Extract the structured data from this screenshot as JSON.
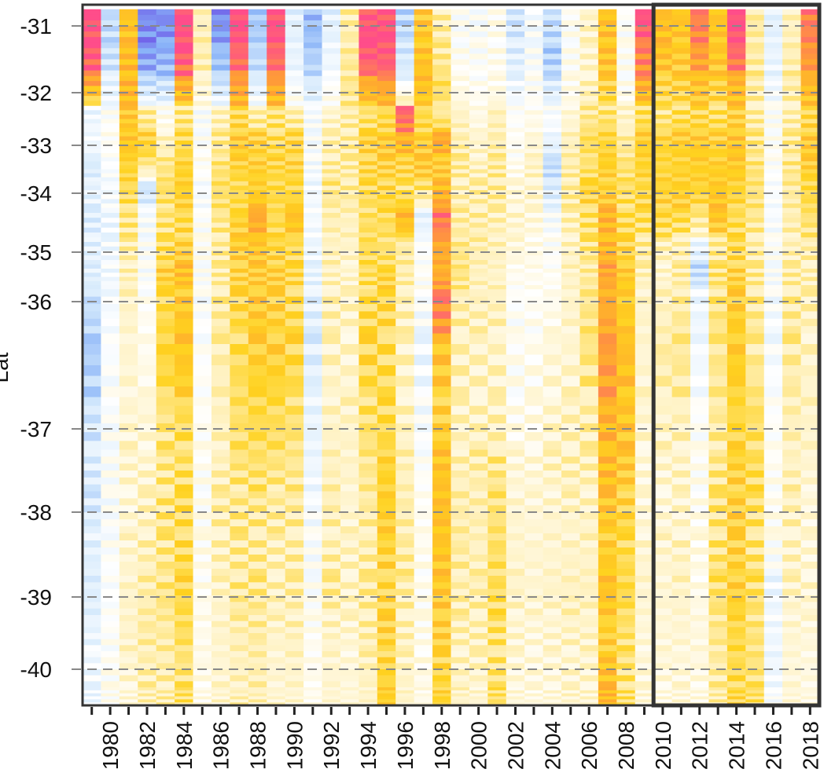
{
  "chart_data": {
    "type": "heatmap",
    "title": "",
    "xlabel": "",
    "ylabel": "Lat",
    "x_tick_labels": [
      "1980",
      "1982",
      "1984",
      "1986",
      "1988",
      "1990",
      "1992",
      "1994",
      "1996",
      "1998",
      "2000",
      "2002",
      "2004",
      "2006",
      "2008",
      "2010",
      "2012",
      "2014",
      "2016",
      "2018"
    ],
    "y_tick_labels": [
      "-31",
      "-32",
      "-33",
      "-34",
      "-35",
      "-36",
      "-37",
      "-38",
      "-39",
      "-40"
    ],
    "y_ticks": [
      -31,
      -32,
      -33,
      -34,
      -35,
      -36,
      -37,
      -38,
      -39,
      -40
    ],
    "years": [
      1979,
      1980,
      1981,
      1982,
      1983,
      1984,
      1985,
      1986,
      1987,
      1988,
      1989,
      1990,
      1991,
      1992,
      1993,
      1994,
      1995,
      1996,
      1997,
      1998,
      1999,
      2000,
      2001,
      2002,
      2003,
      2004,
      2005,
      2006,
      2007,
      2008,
      2009,
      2010,
      2011,
      2012,
      2013,
      2014,
      2015,
      2016,
      2017,
      2018
    ],
    "xlim": [
      1978.5,
      2018.5
    ],
    "ylim": [
      -30.7,
      -40.5
    ],
    "grid": "dashed horizontal lines at y ticks",
    "highlight_box": {
      "x_start": 2009.5,
      "x_end": 2018.5,
      "label": ""
    },
    "value_scale": [
      -3,
      3
    ],
    "colors": {
      "scale": [
        "#6a4ee6",
        "#8ab4f8",
        "#d6eafc",
        "#ffffff",
        "#fff2c2",
        "#ffd21f",
        "#ffa033",
        "#ff4d8a"
      ],
      "grid_line": "#888888",
      "frame": "#333333",
      "highlight_border": "#333333"
    },
    "lat_bands": [
      {
        "lat": -31.0,
        "values": [
          3.0,
          -1.5,
          1.5,
          -2.5,
          -2.5,
          3.0,
          0.4,
          -2.5,
          3.0,
          -1.8,
          3.0,
          -1.0,
          -2.0,
          -1.0,
          0.5,
          3.0,
          3.0,
          -1.6,
          1.4,
          0.5,
          -0.4,
          -0.5,
          -0.2,
          -1.3,
          -0.6,
          -1.4,
          -0.3,
          0.3,
          1.5,
          -0.4,
          3.0,
          1.6,
          1.5,
          2.5,
          1.5,
          3.0,
          0.6,
          -1.0,
          0.4,
          2.5
        ]
      },
      {
        "lat": -31.5,
        "values": [
          3.0,
          -1.4,
          1.6,
          -2.4,
          -2.2,
          3.0,
          0.5,
          -2.0,
          2.8,
          -1.6,
          2.8,
          -0.9,
          -1.8,
          -0.8,
          0.6,
          3.0,
          3.0,
          -1.3,
          1.5,
          0.6,
          -0.3,
          -0.4,
          -0.2,
          -1.1,
          -0.5,
          -1.8,
          -0.3,
          0.2,
          1.6,
          -0.3,
          2.5,
          1.6,
          1.4,
          2.2,
          1.5,
          2.8,
          0.6,
          -0.9,
          0.5,
          2.3
        ]
      },
      {
        "lat": -32.0,
        "values": [
          2.2,
          -1.0,
          1.8,
          -1.6,
          -1.4,
          2.0,
          0.3,
          -1.5,
          2.2,
          -1.2,
          2.2,
          -0.7,
          -1.2,
          -0.5,
          0.7,
          2.0,
          2.2,
          -0.9,
          1.6,
          1.0,
          -0.2,
          -0.3,
          -0.2,
          -0.8,
          -0.4,
          -1.2,
          -0.2,
          0.3,
          1.2,
          -0.3,
          2.0,
          1.2,
          1.2,
          1.6,
          1.2,
          1.8,
          0.5,
          -0.7,
          0.5,
          1.8
        ]
      },
      {
        "lat": -32.5,
        "values": [
          -0.8,
          -0.4,
          1.4,
          0.5,
          -0.3,
          0.7,
          -0.5,
          0.3,
          1.0,
          0.4,
          0.8,
          0.4,
          -0.6,
          0.2,
          0.5,
          0.8,
          1.0,
          2.8,
          1.0,
          0.5,
          0.3,
          -0.1,
          0.4,
          -0.4,
          -0.2,
          -0.5,
          0.1,
          0.6,
          0.8,
          0.2,
          0.9,
          0.7,
          0.9,
          1.0,
          0.9,
          1.2,
          0.5,
          -0.4,
          0.4,
          1.0
        ]
      },
      {
        "lat": -33.0,
        "values": [
          -0.6,
          -0.3,
          1.5,
          1.2,
          0.3,
          1.0,
          -0.4,
          0.6,
          1.4,
          1.2,
          1.0,
          1.1,
          -0.5,
          0.4,
          0.6,
          1.2,
          1.4,
          1.8,
          1.3,
          2.0,
          0.5,
          0.2,
          0.5,
          -0.3,
          0.1,
          -0.8,
          0.4,
          1.0,
          1.1,
          0.6,
          1.3,
          1.2,
          1.3,
          1.4,
          1.2,
          1.5,
          0.7,
          -0.3,
          0.6,
          1.4
        ]
      },
      {
        "lat": -33.5,
        "values": [
          -1.2,
          -0.5,
          1.2,
          0.9,
          0.7,
          1.2,
          -0.3,
          0.8,
          1.2,
          1.3,
          1.1,
          1.2,
          -0.6,
          0.5,
          0.5,
          1.1,
          1.2,
          1.2,
          1.4,
          1.3,
          0.6,
          0.3,
          0.6,
          -0.2,
          0.3,
          -1.5,
          0.5,
          0.8,
          1.3,
          0.8,
          1.2,
          1.1,
          1.2,
          1.3,
          1.3,
          1.4,
          0.8,
          -0.4,
          0.7,
          1.3
        ]
      },
      {
        "lat": -34.0,
        "values": [
          -0.9,
          -0.6,
          1.0,
          -1.4,
          0.9,
          1.3,
          -0.6,
          0.9,
          1.0,
          1.2,
          1.1,
          1.0,
          -0.7,
          0.7,
          0.6,
          1.0,
          1.1,
          0.8,
          1.0,
          1.6,
          0.4,
          0.5,
          0.6,
          0.1,
          0.2,
          -1.2,
          0.6,
          1.2,
          1.2,
          0.9,
          1.1,
          1.2,
          1.3,
          1.2,
          1.4,
          1.2,
          0.8,
          -0.5,
          0.6,
          1.1
        ]
      },
      {
        "lat": -34.5,
        "values": [
          -1.1,
          -0.8,
          0.8,
          -0.6,
          0.8,
          1.0,
          -0.4,
          0.7,
          1.2,
          2.0,
          1.0,
          1.6,
          -0.6,
          0.5,
          0.4,
          0.9,
          1.0,
          1.8,
          -1.0,
          2.6,
          0.5,
          0.5,
          0.4,
          0.2,
          0.1,
          -0.6,
          0.4,
          0.9,
          1.8,
          1.0,
          1.0,
          1.2,
          1.1,
          0.9,
          1.6,
          1.0,
          0.7,
          -0.6,
          0.5,
          0.9
        ]
      },
      {
        "lat": -35.0,
        "values": [
          -1.0,
          -0.7,
          0.5,
          -0.4,
          0.9,
          1.2,
          -0.3,
          0.6,
          1.3,
          1.5,
          1.1,
          1.0,
          -0.8,
          0.4,
          0.3,
          1.0,
          0.8,
          0.6,
          -0.5,
          2.0,
          0.7,
          0.5,
          0.4,
          0.1,
          -0.1,
          -0.4,
          0.3,
          0.8,
          1.7,
          1.1,
          0.6,
          0.4,
          0.4,
          -0.8,
          0.6,
          1.0,
          0.5,
          -0.4,
          0.4,
          0.5
        ]
      },
      {
        "lat": -35.5,
        "values": [
          -1.0,
          -0.7,
          0.4,
          -0.5,
          1.3,
          1.6,
          -0.4,
          0.5,
          1.2,
          1.3,
          1.3,
          1.1,
          -0.9,
          0.3,
          0.2,
          0.9,
          1.2,
          0.5,
          -0.3,
          1.8,
          0.8,
          0.4,
          0.3,
          -0.2,
          -0.2,
          -0.3,
          0.3,
          0.6,
          2.0,
          1.4,
          0.4,
          0.2,
          0.5,
          -1.5,
          0.8,
          1.2,
          0.6,
          -0.5,
          0.5,
          0.4
        ]
      },
      {
        "lat": -36.0,
        "values": [
          -1.4,
          -0.6,
          0.3,
          -0.3,
          1.0,
          1.4,
          -0.5,
          0.6,
          1.1,
          1.4,
          1.2,
          1.0,
          -1.0,
          0.4,
          0.3,
          1.0,
          1.1,
          0.4,
          -0.5,
          2.6,
          0.5,
          0.4,
          0.4,
          -0.4,
          -0.3,
          -0.2,
          0.3,
          0.7,
          1.9,
          1.3,
          0.3,
          0.3,
          0.6,
          -0.8,
          0.8,
          1.3,
          0.7,
          -0.6,
          0.6,
          0.4
        ]
      },
      {
        "lat": -36.5,
        "values": [
          -1.8,
          -0.5,
          0.2,
          -0.2,
          1.2,
          1.5,
          -0.4,
          0.5,
          1.0,
          1.3,
          1.3,
          1.1,
          -1.1,
          0.3,
          0.2,
          1.1,
          1.0,
          0.3,
          -0.8,
          1.5,
          0.4,
          0.3,
          0.3,
          -0.3,
          -0.2,
          0.1,
          0.2,
          0.8,
          2.2,
          1.6,
          0.2,
          0.6,
          0.7,
          -0.7,
          0.7,
          1.4,
          0.6,
          -0.6,
          0.6,
          0.3
        ]
      },
      {
        "lat": -37.0,
        "values": [
          -1.3,
          -0.5,
          0.2,
          0.1,
          0.8,
          1.0,
          -0.3,
          0.4,
          0.9,
          1.1,
          1.0,
          0.9,
          -0.9,
          0.3,
          0.3,
          0.9,
          1.0,
          0.3,
          -0.6,
          1.2,
          0.3,
          0.3,
          0.3,
          -0.2,
          -0.1,
          0.2,
          0.3,
          0.5,
          1.8,
          1.5,
          0.2,
          0.3,
          0.4,
          -0.4,
          0.6,
          1.1,
          0.9,
          -0.4,
          0.5,
          0.3
        ]
      },
      {
        "lat": -37.5,
        "values": [
          -1.1,
          -0.4,
          0.2,
          0.2,
          0.7,
          0.9,
          -0.3,
          0.4,
          0.8,
          0.9,
          0.8,
          0.7,
          -0.8,
          0.4,
          0.3,
          0.7,
          1.2,
          0.4,
          -0.4,
          1.5,
          0.4,
          0.5,
          0.7,
          0.1,
          0.1,
          0.3,
          0.4,
          0.4,
          1.7,
          1.4,
          0.1,
          0.2,
          0.3,
          -0.3,
          0.7,
          1.2,
          1.0,
          -0.3,
          0.4,
          0.2
        ]
      },
      {
        "lat": -38.0,
        "values": [
          -1.2,
          -0.5,
          0.1,
          0.3,
          0.8,
          1.0,
          -0.3,
          0.5,
          0.7,
          0.7,
          0.6,
          0.6,
          -0.6,
          0.5,
          0.2,
          0.6,
          1.3,
          0.5,
          -0.3,
          1.6,
          0.5,
          0.5,
          0.8,
          0.2,
          0.1,
          0.2,
          0.3,
          0.3,
          1.5,
          1.2,
          0.1,
          0.1,
          0.2,
          -0.2,
          0.8,
          1.3,
          0.9,
          -0.2,
          0.4,
          0.1
        ]
      },
      {
        "lat": -38.5,
        "values": [
          -1.0,
          -0.4,
          0.2,
          0.4,
          0.7,
          1.0,
          -0.2,
          0.4,
          0.6,
          0.6,
          0.4,
          0.5,
          -0.5,
          0.4,
          0.3,
          0.5,
          1.2,
          0.6,
          -0.2,
          1.5,
          0.6,
          0.4,
          0.9,
          0.2,
          0.2,
          0.2,
          0.3,
          0.3,
          1.3,
          1.0,
          0.2,
          0.2,
          0.3,
          -0.1,
          0.8,
          1.2,
          0.8,
          -0.3,
          0.3,
          0.1
        ]
      },
      {
        "lat": -39.0,
        "values": [
          -1.1,
          -0.5,
          0.3,
          0.5,
          0.8,
          1.1,
          -0.2,
          0.3,
          0.7,
          0.7,
          0.4,
          0.5,
          -0.4,
          0.6,
          0.3,
          0.6,
          1.1,
          0.5,
          -0.2,
          1.4,
          0.5,
          0.5,
          1.0,
          0.3,
          0.2,
          0.3,
          0.4,
          0.4,
          1.6,
          1.1,
          0.2,
          0.2,
          0.3,
          -0.1,
          0.9,
          1.3,
          0.9,
          -0.8,
          0.3,
          0.2
        ]
      },
      {
        "lat": -39.5,
        "values": [
          -0.9,
          -0.4,
          0.3,
          0.6,
          0.6,
          1.0,
          -0.2,
          0.3,
          0.5,
          0.6,
          0.3,
          0.4,
          -0.3,
          0.3,
          0.2,
          0.5,
          1.2,
          0.4,
          -0.2,
          1.3,
          0.4,
          0.4,
          0.9,
          0.2,
          0.1,
          0.2,
          0.3,
          0.3,
          1.2,
          0.9,
          0.1,
          0.1,
          0.2,
          0.0,
          0.7,
          1.1,
          0.8,
          -0.7,
          0.2,
          0.1
        ]
      },
      {
        "lat": -40.0,
        "values": [
          -0.7,
          -0.3,
          0.2,
          0.5,
          0.5,
          0.8,
          -0.1,
          0.2,
          0.4,
          0.5,
          0.2,
          0.3,
          -0.2,
          0.2,
          0.1,
          0.4,
          1.1,
          0.3,
          -0.1,
          1.1,
          0.3,
          0.3,
          0.8,
          0.1,
          0.1,
          0.1,
          0.2,
          0.2,
          1.5,
          0.8,
          0.1,
          0.1,
          0.1,
          0.0,
          0.6,
          1.0,
          0.8,
          -0.8,
          0.1,
          0.0
        ]
      },
      {
        "lat": -40.5,
        "values": [
          -0.8,
          -0.3,
          0.1,
          0.4,
          0.5,
          0.9,
          -0.1,
          0.2,
          0.4,
          0.4,
          0.2,
          0.2,
          -0.2,
          0.2,
          0.1,
          0.3,
          1.3,
          0.3,
          -0.1,
          1.2,
          0.3,
          0.2,
          0.9,
          0.1,
          0.0,
          0.1,
          0.2,
          0.2,
          1.7,
          0.9,
          0.1,
          0.0,
          0.1,
          0.0,
          0.5,
          1.1,
          0.9,
          -0.5,
          0.1,
          0.0
        ]
      }
    ]
  }
}
